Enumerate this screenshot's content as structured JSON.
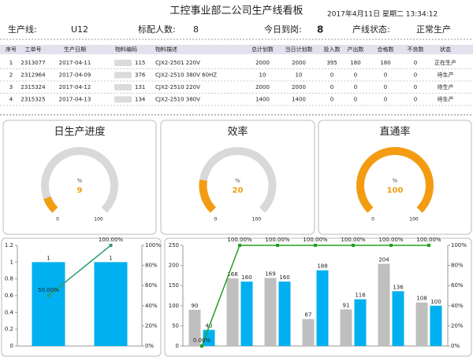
{
  "header": {
    "title": "工控事业部二公司生产线看板",
    "datetime": "2017年4月11日 星期二 13:34:12"
  },
  "info": [
    {
      "label": "生产线:",
      "value": "U12"
    },
    {
      "label": "标配人数:",
      "value": 8
    },
    {
      "label": "今日到岗:",
      "value": 8
    },
    {
      "label": "产线状态:",
      "value": "正常生产"
    }
  ],
  "table": {
    "columns": [
      "序号",
      "工单号",
      "生产日期",
      "物料编码",
      "物料描述",
      "总计划数",
      "当日计划数",
      "投入数",
      "产出数",
      "合格数",
      "不良数",
      "状态"
    ],
    "rows": [
      [
        1,
        "2313077",
        "2017-04-11",
        "115",
        "CJX2-2501 220V",
        2000,
        2000,
        395,
        180,
        180,
        0,
        "正在生产"
      ],
      [
        2,
        "2312964",
        "2017-04-09",
        "376",
        "CJX2-2510 380V 60HZ",
        10,
        10,
        0,
        0,
        0,
        0,
        "待生产"
      ],
      [
        3,
        "2315324",
        "2017-04-12",
        "131",
        "CJX2-2510 220V",
        2000,
        2000,
        0,
        0,
        0,
        0,
        "待生产"
      ],
      [
        4,
        "2315325",
        "2017-04-13",
        "134",
        "CJX2-2510 380V",
        1400,
        1400,
        0,
        0,
        0,
        0,
        "待生产"
      ]
    ]
  },
  "gauges": [
    {
      "title": "日生产进度",
      "unit": "%",
      "value": 9,
      "min": 0,
      "max": 100
    },
    {
      "title": "效率",
      "unit": "%",
      "value": 20,
      "min": 0,
      "max": 100
    },
    {
      "title": "直通率",
      "unit": "%",
      "value": 100,
      "min": 0,
      "max": 100
    }
  ],
  "chart_data": [
    {
      "type": "bar",
      "categories": [
        null,
        null
      ],
      "ylim": [
        0,
        1.2
      ],
      "yticks": [
        0,
        0.2,
        0.4,
        0.6,
        0.8,
        1,
        1.2
      ],
      "y2lim": [
        0,
        100
      ],
      "y2ticks": [
        {
          "value": 0,
          "label": "0%"
        },
        {
          "value": 20,
          "label": "20%"
        },
        {
          "value": 40,
          "label": "40%"
        },
        {
          "value": 60,
          "label": "60%"
        },
        {
          "value": 80,
          "label": "80%"
        },
        {
          "value": 100,
          "label": "100%"
        }
      ],
      "series": [
        {
          "type": "bar",
          "color": "#00b0f0",
          "values": [
            1,
            1
          ]
        },
        {
          "type": "line",
          "axis": "y2",
          "color": "#2e9e6e",
          "values": [
            50,
            100
          ],
          "value_labels": [
            "50.00%",
            "100.00%"
          ]
        }
      ]
    },
    {
      "type": "bar",
      "categories": [
        null,
        null,
        null,
        null,
        null,
        null,
        null
      ],
      "ylim": [
        0,
        250
      ],
      "yticks": [
        0,
        50,
        100,
        150,
        200,
        250
      ],
      "y2lim": [
        0,
        100
      ],
      "y2ticks": [
        {
          "value": 0,
          "label": "0%"
        },
        {
          "value": 20,
          "label": "20%"
        },
        {
          "value": 40,
          "label": "40%"
        },
        {
          "value": 60,
          "label": "60%"
        },
        {
          "value": 80,
          "label": "80%"
        },
        {
          "value": 100,
          "label": "100%"
        }
      ],
      "series": [
        {
          "type": "bar",
          "color": "#bfbfbf",
          "values": [
            90,
            168,
            169,
            67,
            91,
            204,
            108
          ]
        },
        {
          "type": "bar",
          "color": "#00b0f0",
          "values": [
            40,
            160,
            160,
            188,
            116,
            136,
            100
          ]
        },
        {
          "type": "line",
          "axis": "y2",
          "color": "#22a022",
          "values": [
            0,
            100,
            100,
            100,
            100,
            100,
            100
          ],
          "value_labels": [
            "0.00%",
            "100.00%",
            "100.00%",
            "100.00%",
            "100.00%",
            "100.00%",
            "100.00%"
          ]
        }
      ]
    }
  ]
}
